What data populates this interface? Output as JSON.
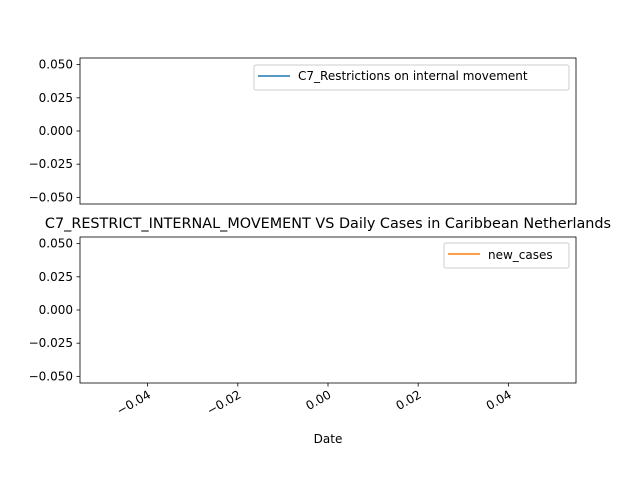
{
  "chart_data": [
    {
      "type": "line",
      "title": "",
      "xlabel": "",
      "ylabel": "",
      "ylim": [
        -0.055,
        0.055
      ],
      "yticks": [
        "0.050",
        "0.025",
        "0.000",
        "−0.025",
        "−0.050"
      ],
      "ytick_values": [
        0.05,
        0.025,
        0.0,
        -0.025,
        -0.05
      ],
      "series": [
        {
          "name": "C7_Restrictions on internal movement",
          "color": "#1f77b4",
          "x": [],
          "y": []
        }
      ],
      "legend_position": "upper-right"
    },
    {
      "type": "line",
      "title": "C7_RESTRICT_INTERNAL_MOVEMENT VS Daily Cases in Caribbean Netherlands",
      "xlabel": "Date",
      "ylabel": "",
      "xlim": [
        -0.055,
        0.055
      ],
      "ylim": [
        -0.055,
        0.055
      ],
      "xticks": [
        "−0.04",
        "−0.02",
        "0.00",
        "0.02",
        "0.04"
      ],
      "xtick_values": [
        -0.04,
        -0.02,
        0.0,
        0.02,
        0.04
      ],
      "yticks": [
        "0.050",
        "0.025",
        "0.000",
        "−0.025",
        "−0.050"
      ],
      "ytick_values": [
        0.05,
        0.025,
        0.0,
        -0.025,
        -0.05
      ],
      "series": [
        {
          "name": "new_cases",
          "color": "#ff7f0e",
          "x": [],
          "y": []
        }
      ],
      "legend_position": "upper-right"
    }
  ]
}
